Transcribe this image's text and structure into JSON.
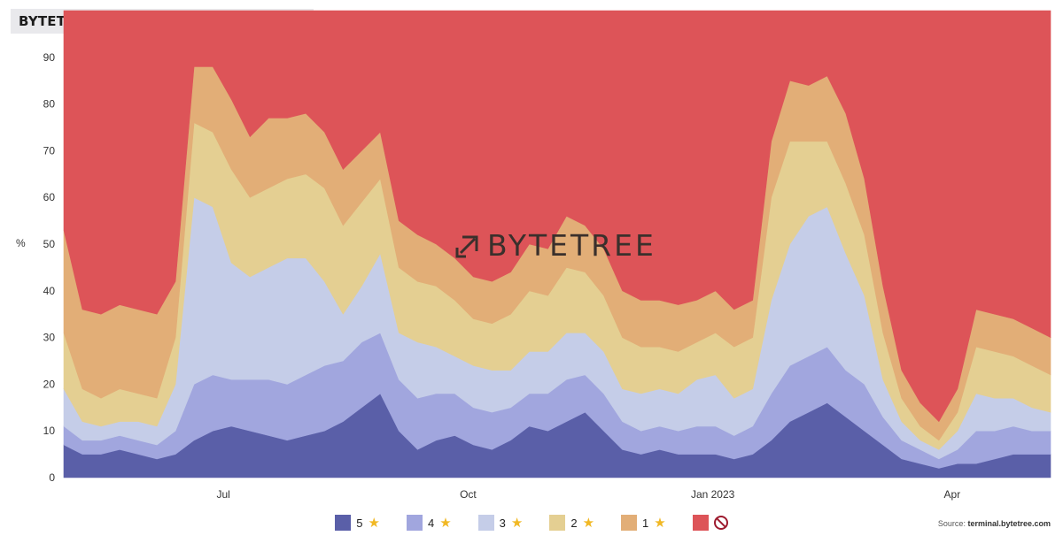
{
  "title": "BYTETREND CRYPTO BREADTH IN BTC",
  "watermark": "BYTETREE",
  "source_label": "Source: ",
  "source_site": "terminal.bytetree.com",
  "chart_data": {
    "type": "area",
    "stacked": true,
    "ylabel": "%",
    "ylim": [
      0,
      100
    ],
    "yticks": [
      0,
      10,
      20,
      30,
      40,
      50,
      60,
      70,
      80,
      90
    ],
    "x": [
      "2022-05-02",
      "2022-05-09",
      "2022-05-16",
      "2022-05-23",
      "2022-05-30",
      "2022-06-06",
      "2022-06-13",
      "2022-06-20",
      "2022-06-27",
      "2022-07-04",
      "2022-07-11",
      "2022-07-18",
      "2022-07-25",
      "2022-08-01",
      "2022-08-08",
      "2022-08-15",
      "2022-08-22",
      "2022-08-29",
      "2022-09-05",
      "2022-09-12",
      "2022-09-19",
      "2022-09-26",
      "2022-10-03",
      "2022-10-10",
      "2022-10-17",
      "2022-10-24",
      "2022-10-31",
      "2022-11-07",
      "2022-11-14",
      "2022-11-21",
      "2022-11-28",
      "2022-12-05",
      "2022-12-12",
      "2022-12-19",
      "2022-12-26",
      "2023-01-02",
      "2023-01-09",
      "2023-01-16",
      "2023-01-23",
      "2023-01-30",
      "2023-02-06",
      "2023-02-13",
      "2023-02-20",
      "2023-02-27",
      "2023-03-06",
      "2023-03-13",
      "2023-03-20",
      "2023-03-27",
      "2023-04-03",
      "2023-04-10",
      "2023-04-17",
      "2023-04-24",
      "2023-05-01",
      "2023-05-08"
    ],
    "xticks": [
      {
        "date": "2022-07-01",
        "label": "Jul"
      },
      {
        "date": "2022-10-01",
        "label": "Oct"
      },
      {
        "date": "2023-01-01",
        "label": "Jan 2023"
      },
      {
        "date": "2023-04-01",
        "label": "Apr"
      }
    ],
    "series": [
      {
        "name": "5",
        "color": "#5a5fa8",
        "values": [
          7,
          5,
          5,
          6,
          5,
          4,
          5,
          8,
          10,
          11,
          10,
          9,
          8,
          9,
          10,
          12,
          15,
          18,
          10,
          6,
          8,
          9,
          7,
          6,
          8,
          11,
          10,
          12,
          14,
          10,
          6,
          5,
          6,
          5,
          5,
          5,
          4,
          5,
          8,
          12,
          14,
          16,
          13,
          10,
          7,
          4,
          3,
          2,
          3,
          3,
          4,
          5,
          5,
          5
        ]
      },
      {
        "name": "4",
        "color": "#a1a6de",
        "values": [
          4,
          3,
          3,
          3,
          3,
          3,
          5,
          12,
          12,
          10,
          11,
          12,
          12,
          13,
          14,
          13,
          14,
          13,
          11,
          11,
          10,
          9,
          8,
          8,
          7,
          7,
          8,
          9,
          8,
          8,
          6,
          5,
          5,
          5,
          6,
          6,
          5,
          6,
          10,
          12,
          12,
          12,
          10,
          10,
          6,
          4,
          3,
          2,
          3,
          7,
          6,
          6,
          5,
          5
        ]
      },
      {
        "name": "3",
        "color": "#c5cde8",
        "values": [
          8,
          4,
          3,
          3,
          4,
          4,
          10,
          40,
          36,
          25,
          22,
          24,
          27,
          25,
          18,
          10,
          12,
          17,
          10,
          12,
          10,
          8,
          9,
          9,
          8,
          9,
          9,
          10,
          9,
          9,
          7,
          8,
          8,
          8,
          10,
          11,
          8,
          8,
          20,
          26,
          30,
          30,
          25,
          19,
          8,
          4,
          2,
          2,
          4,
          8,
          7,
          6,
          5,
          4
        ]
      },
      {
        "name": "2",
        "color": "#e4cf92",
        "values": [
          12,
          7,
          6,
          7,
          6,
          6,
          10,
          16,
          16,
          20,
          17,
          17,
          17,
          18,
          20,
          19,
          18,
          16,
          14,
          13,
          13,
          12,
          10,
          10,
          12,
          13,
          12,
          14,
          13,
          12,
          11,
          10,
          9,
          9,
          8,
          9,
          11,
          11,
          22,
          22,
          16,
          14,
          15,
          13,
          10,
          5,
          3,
          2,
          4,
          10,
          10,
          9,
          9,
          8
        ]
      },
      {
        "name": "1",
        "color": "#e2ae77",
        "values": [
          22,
          17,
          18,
          18,
          18,
          18,
          12,
          12,
          14,
          15,
          13,
          15,
          13,
          13,
          12,
          12,
          11,
          10,
          10,
          10,
          9,
          9,
          9,
          9,
          9,
          10,
          10,
          11,
          10,
          10,
          10,
          10,
          10,
          10,
          9,
          9,
          8,
          8,
          12,
          13,
          12,
          14,
          15,
          12,
          10,
          6,
          5,
          4,
          5,
          8,
          8,
          8,
          8,
          8
        ]
      },
      {
        "name": "",
        "color": "#dd5458",
        "values": [
          47,
          64,
          65,
          63,
          64,
          65,
          58,
          12,
          12,
          19,
          27,
          23,
          23,
          22,
          26,
          34,
          30,
          26,
          45,
          48,
          50,
          53,
          57,
          58,
          56,
          50,
          51,
          44,
          46,
          51,
          60,
          62,
          62,
          63,
          62,
          60,
          64,
          62,
          28,
          15,
          16,
          14,
          22,
          36,
          59,
          77,
          84,
          88,
          81,
          64,
          65,
          66,
          68,
          70
        ]
      }
    ]
  },
  "legend": [
    {
      "label": "5",
      "color": "#5a5fa8",
      "icon": "star-icon"
    },
    {
      "label": "4",
      "color": "#a1a6de",
      "icon": "star-icon"
    },
    {
      "label": "3",
      "color": "#c5cde8",
      "icon": "star-icon"
    },
    {
      "label": "2",
      "color": "#e4cf92",
      "icon": "star-icon"
    },
    {
      "label": "1",
      "color": "#e2ae77",
      "icon": "star-icon"
    },
    {
      "label": "",
      "color": "#dd5458",
      "icon": "no-entry-icon"
    }
  ]
}
